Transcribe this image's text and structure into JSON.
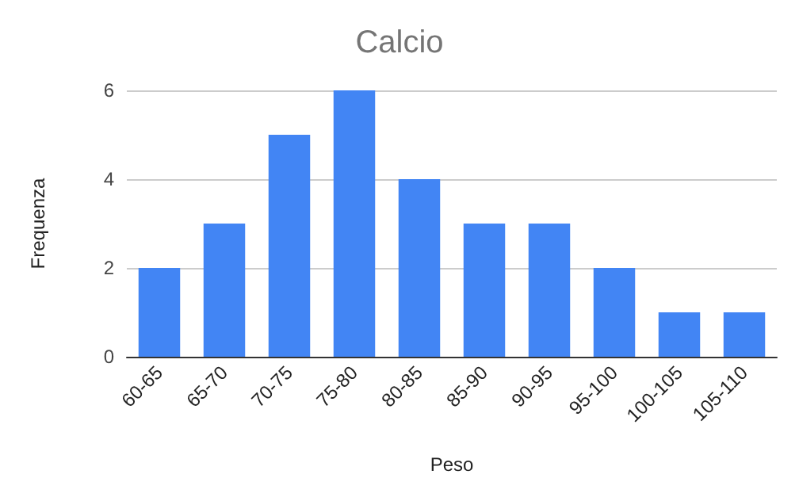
{
  "chart_data": {
    "type": "bar",
    "title": "Calcio",
    "xlabel": "Peso",
    "ylabel": "Frequenza",
    "categories": [
      "60-65",
      "65-70",
      "70-75",
      "75-80",
      "80-85",
      "85-90",
      "90-95",
      "95-100",
      "100-105",
      "105-110"
    ],
    "values": [
      2,
      3,
      5,
      6,
      4,
      3,
      3,
      2,
      1,
      1
    ],
    "color": "#4285f4",
    "ylim": [
      0,
      6
    ],
    "yticks": [
      0,
      2,
      4,
      6
    ],
    "grid": "y"
  }
}
